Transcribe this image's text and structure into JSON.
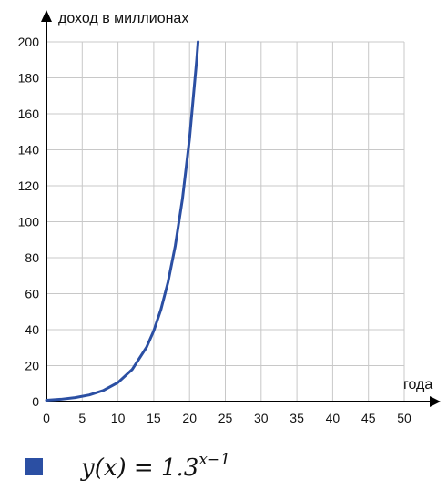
{
  "chart_data": {
    "type": "line",
    "title": "",
    "xlabel": "года",
    "ylabel": "доход в миллионах",
    "xlim": [
      0,
      50
    ],
    "ylim": [
      0,
      200
    ],
    "x_ticks": [
      0,
      5,
      10,
      15,
      20,
      25,
      30,
      35,
      40,
      45,
      50
    ],
    "y_ticks": [
      0,
      20,
      40,
      60,
      80,
      100,
      120,
      140,
      160,
      180,
      200
    ],
    "grid": true,
    "legend": "bottom-left",
    "series": [
      {
        "name": "y(x) = 1.3^{x-1}",
        "color": "#2b4fa3",
        "x": [
          0,
          2,
          4,
          6,
          8,
          10,
          12,
          14,
          15,
          16,
          17,
          18,
          19,
          20,
          21,
          21.19
        ],
        "y": [
          0.77,
          1.3,
          2.2,
          3.71,
          6.27,
          10.6,
          17.92,
          30.29,
          39.37,
          51.19,
          66.54,
          86.5,
          112.46,
          146.19,
          190.05,
          200
        ]
      }
    ]
  },
  "legend": {
    "label_lhs": "y(x) = 1.3",
    "label_exp": "x−1",
    "swatch_color": "#2b4fa3"
  }
}
